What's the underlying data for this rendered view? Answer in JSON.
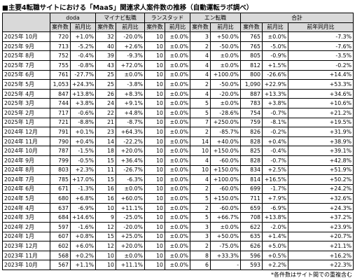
{
  "header": {
    "title": "■主要4転職サイトにおける「MaaS」関連求人案件数の推移（自動運転ラボ調べ）"
  },
  "table": {
    "groups": [
      "doda",
      "マイナビ転職",
      "ランスタッド",
      "エン転職",
      "合計"
    ],
    "subheaders": [
      "案件数",
      "前月比",
      "案件数",
      "前月比",
      "案件数",
      "前月比",
      "案件数",
      "前月比",
      "案件数",
      "前月比",
      "前年同月比"
    ],
    "rows": [
      [
        "2025年 10月",
        "720",
        "+1.0%",
        "32",
        "-20.0%",
        "10",
        "±0.0%",
        "3",
        "+50.0%",
        "765",
        "±0.0%",
        "-7.3%"
      ],
      [
        "2025年 9月",
        "713",
        "-5.2%",
        "40",
        "+2.6%",
        "10",
        "±0.0%",
        "2",
        "-50.0%",
        "765",
        "-5.0%",
        "-7.6%"
      ],
      [
        "2025年 8月",
        "752",
        "-0.4%",
        "39",
        "-9.3%",
        "10",
        "±0.0%",
        "4",
        "±0.0%",
        "805",
        "-0.9%",
        "-3.5%"
      ],
      [
        "2025年 7月",
        "755",
        "-0.8%",
        "43",
        "+72.0%",
        "10",
        "±0.0%",
        "4",
        "±0.0%",
        "812",
        "+1.5%",
        "-0.2%"
      ],
      [
        "2025年 6月",
        "761",
        "-27.7%",
        "25",
        "±0.0%",
        "10",
        "±0.0%",
        "4",
        "+100.0%",
        "800",
        "-26.6%",
        "+14.4%"
      ],
      [
        "2025年 5月",
        "1,053",
        "+24.3%",
        "25",
        "-3.8%",
        "10",
        "±0.0%",
        "2",
        "-50.0%",
        "1,090",
        "+22.9%",
        "+53.3%"
      ],
      [
        "2025年 4月",
        "847",
        "+13.8%",
        "26",
        "+8.3%",
        "10",
        "±0.0%",
        "4",
        "-20.0%",
        "887",
        "+13.3%",
        "+34.6%"
      ],
      [
        "2025年 3月",
        "744",
        "+3.8%",
        "24",
        "+9.1%",
        "10",
        "±0.0%",
        "5",
        "±0.0%",
        "783",
        "+3.8%",
        "+10.6%"
      ],
      [
        "2025年 2月",
        "717",
        "-0.6%",
        "22",
        "+4.8%",
        "10",
        "±0.0%",
        "5",
        "-28.6%",
        "754",
        "-0.7%",
        "+21.2%"
      ],
      [
        "2025年 1月",
        "721",
        "-8.8%",
        "21",
        "-8.7%",
        "10",
        "±0.0%",
        "7",
        "+250.0%",
        "759",
        "-8.1%",
        "+19.5%"
      ],
      [
        "2024年 12月",
        "791",
        "+0.1%",
        "23",
        "+64.3%",
        "10",
        "±0.0%",
        "2",
        "-85.7%",
        "826",
        "-0.2%",
        "+31.9%"
      ],
      [
        "2024年 11月",
        "790",
        "+0.4%",
        "14",
        "-22.2%",
        "10",
        "±0.0%",
        "14",
        "+40.0%",
        "828",
        "+0.4%",
        "+38.9%"
      ],
      [
        "2024年 10月",
        "787",
        "-1.5%",
        "18",
        "+20.0%",
        "10",
        "±0.0%",
        "10",
        "+150.0%",
        "825",
        "-0.4%",
        "+39.1%"
      ],
      [
        "2024年 9月",
        "799",
        "-0.5%",
        "15",
        "+36.4%",
        "10",
        "±0.0%",
        "4",
        "-60.0%",
        "828",
        "-0.7%",
        "+42.8%"
      ],
      [
        "2024年 8月",
        "803",
        "+2.3%",
        "11",
        "-26.7%",
        "10",
        "±0.0%",
        "10",
        "+150.0%",
        "834",
        "+2.5%",
        "+51.9%"
      ],
      [
        "2024年 7月",
        "785",
        "+17.0%",
        "15",
        "-6.3%",
        "10",
        "±0.0%",
        "4",
        "+100.0%",
        "814",
        "+16.5%",
        "+50.2%"
      ],
      [
        "2024年 6月",
        "671",
        "-1.3%",
        "16",
        "±0.0%",
        "10",
        "±0.0%",
        "2",
        "-60.0%",
        "699",
        "-1.7%",
        "+24.2%"
      ],
      [
        "2024年 5月",
        "680",
        "+6.8%",
        "16",
        "+60.0%",
        "10",
        "±0.0%",
        "5",
        "+150.0%",
        "711",
        "+7.9%",
        "+32.6%"
      ],
      [
        "2024年 4月",
        "637",
        "-6.9%",
        "10",
        "+11.1%",
        "10",
        "±0.0%",
        "2",
        "-60.0%",
        "659",
        "-6.9%",
        "+24.3%"
      ],
      [
        "2024年 3月",
        "684",
        "+14.6%",
        "9",
        "-25.0%",
        "10",
        "±0.0%",
        "5",
        "+66.7%",
        "708",
        "+13.8%",
        "+37.2%"
      ],
      [
        "2024年 2月",
        "597",
        "-1.6%",
        "12",
        "-20.0%",
        "10",
        "±0.0%",
        "3",
        "±0.0%",
        "622",
        "-2.0%",
        "+23.9%"
      ],
      [
        "2024年 1月",
        "607",
        "+0.8%",
        "15",
        "+25.0%",
        "10",
        "±0.0%",
        "3",
        "+50.0%",
        "635",
        "+1.4%",
        "+20.7%"
      ],
      [
        "2023年 12月",
        "602",
        "+6.0%",
        "12",
        "+20.0%",
        "10",
        "±0.0%",
        "2",
        "-75.0%",
        "626",
        "+5.0%",
        "+21.1%"
      ],
      [
        "2023年 11月",
        "568",
        "+0.2%",
        "10",
        "±0.0%",
        "10",
        "±0.0%",
        "8",
        "+33.3%",
        "596",
        "+0.5%",
        "+16.2%"
      ],
      [
        "2023年 10月",
        "567",
        "+1.1%",
        "10",
        "+11.1%",
        "10",
        "±0.0%",
        "6",
        "-",
        "593",
        "+2.2%",
        "+22.3%"
      ]
    ]
  },
  "footnote": "*各件数はサイト間での重複含む"
}
